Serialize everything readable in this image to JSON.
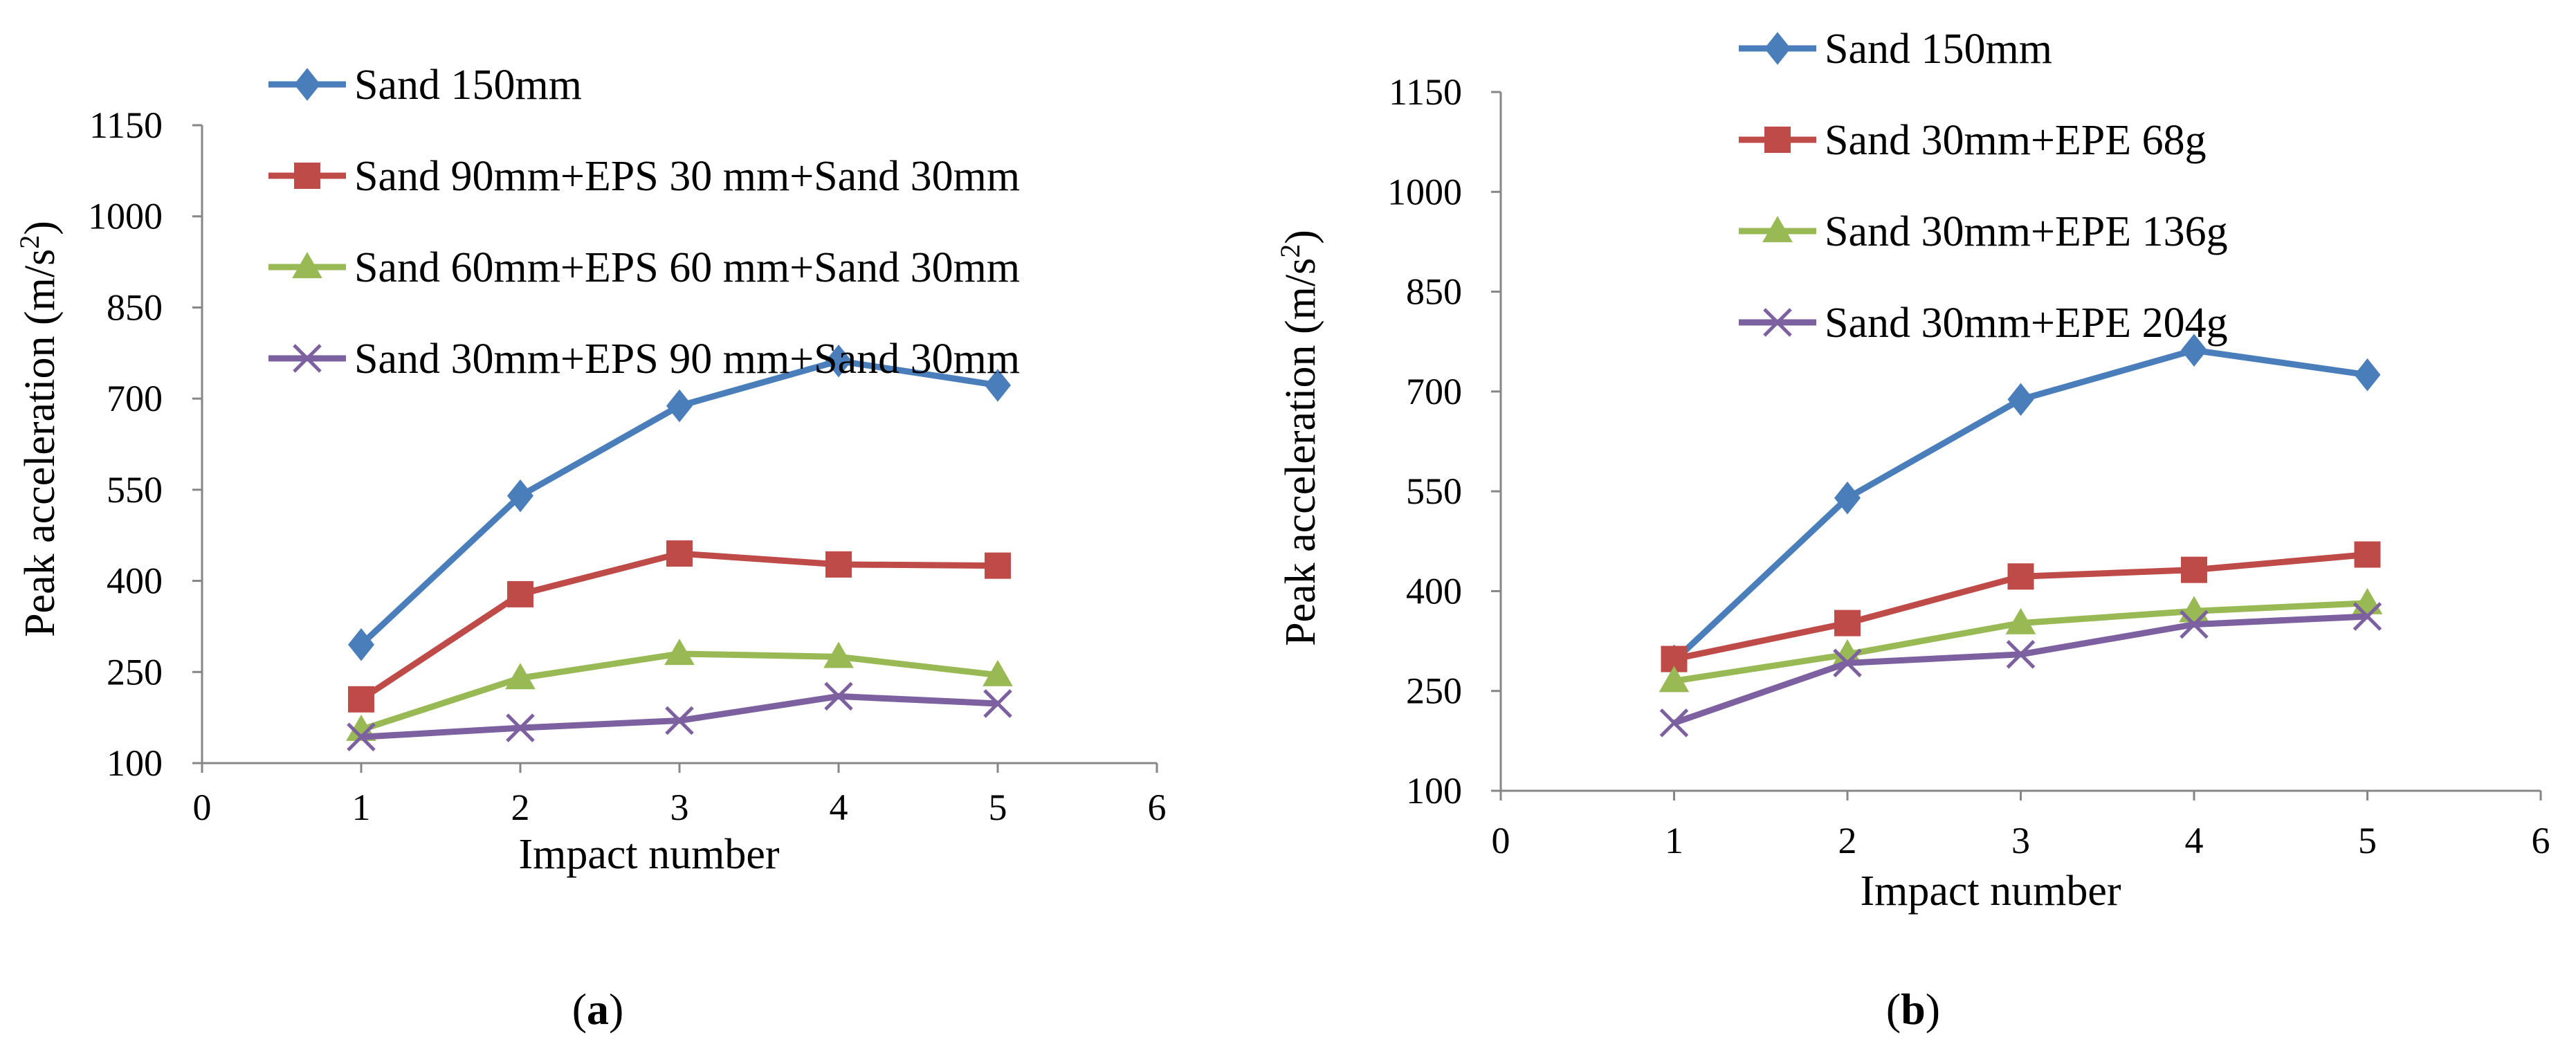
{
  "figure": {
    "series_colors": {
      "blue": "#4A7EBB",
      "red": "#BE4B48",
      "green": "#98B954",
      "purple": "#7D60A0"
    }
  },
  "chart_data": [
    {
      "id": "a",
      "panel_label": "a",
      "type": "line",
      "xlabel": "Impact number",
      "ylabel": "Peak acceleration (m/s",
      "ylabel_superscript": "2",
      "ylabel_suffix": ")",
      "xlim": [
        0,
        6
      ],
      "ylim": [
        100,
        1150
      ],
      "x_ticks": [
        0,
        1,
        2,
        3,
        4,
        5,
        6
      ],
      "y_ticks": [
        100,
        250,
        400,
        550,
        700,
        850,
        1000,
        1150
      ],
      "x": [
        1,
        2,
        3,
        4,
        5
      ],
      "series": [
        {
          "name": "Sand 150mm",
          "marker": "diamond",
          "color": "#4A7EBB",
          "values": [
            295,
            540,
            688,
            762,
            722
          ]
        },
        {
          "name": "Sand 90mm+EPS 30 mm+Sand 30mm",
          "marker": "square",
          "color": "#BE4B48",
          "values": [
            205,
            378,
            445,
            427,
            425
          ]
        },
        {
          "name": "Sand 60mm+EPS 60 mm+Sand 30mm",
          "marker": "triangle",
          "color": "#98B954",
          "values": [
            155,
            240,
            280,
            275,
            245
          ]
        },
        {
          "name": "Sand 30mm+EPS 90 mm+Sand 30mm",
          "marker": "x",
          "color": "#7D60A0",
          "values": [
            143,
            158,
            170,
            210,
            198
          ]
        }
      ],
      "legend_position": "top"
    },
    {
      "id": "b",
      "panel_label": "b",
      "type": "line",
      "xlabel": "Impact number",
      "ylabel": "Peak acceleration (m/s",
      "ylabel_superscript": "2",
      "ylabel_suffix": ")",
      "xlim": [
        0,
        6
      ],
      "ylim": [
        100,
        1150
      ],
      "x_ticks": [
        0,
        1,
        2,
        3,
        4,
        5,
        6
      ],
      "y_ticks": [
        100,
        250,
        400,
        550,
        700,
        850,
        1000,
        1150
      ],
      "x": [
        1,
        2,
        3,
        4,
        5
      ],
      "series": [
        {
          "name": "Sand 150mm",
          "marker": "diamond",
          "color": "#4A7EBB",
          "values": [
            295,
            540,
            688,
            762,
            725
          ]
        },
        {
          "name": "Sand 30mm+EPE 68g",
          "marker": "square",
          "color": "#BE4B48",
          "values": [
            298,
            352,
            422,
            432,
            455
          ]
        },
        {
          "name": "Sand 30mm+EPE 136g",
          "marker": "triangle",
          "color": "#98B954",
          "values": [
            265,
            305,
            352,
            370,
            382
          ]
        },
        {
          "name": "Sand 30mm+EPE 204g",
          "marker": "x",
          "color": "#7D60A0",
          "values": [
            202,
            292,
            305,
            350,
            362
          ]
        }
      ],
      "legend_position": "top"
    }
  ]
}
